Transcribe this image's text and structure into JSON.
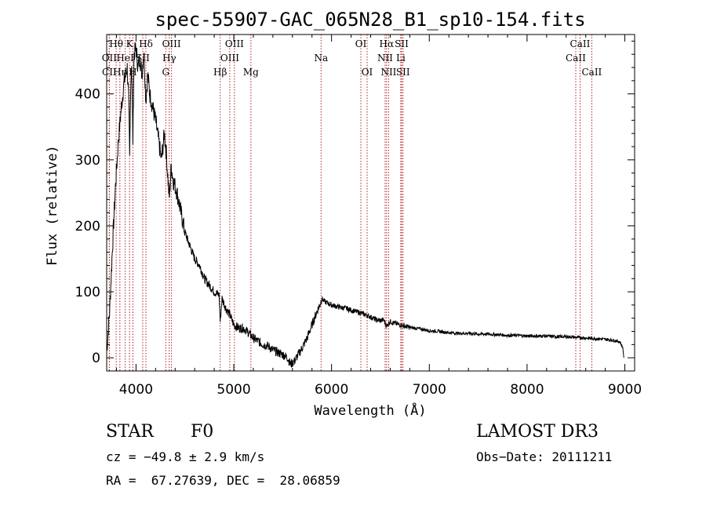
{
  "chart_data": {
    "type": "line",
    "title": "spec-55907-GAC_065N28_B1_sp10-154.fits",
    "xlabel": "Wavelength (Å)",
    "ylabel": "Flux (relative)",
    "xlim": [
      3700,
      9100
    ],
    "ylim": [
      -20,
      490
    ],
    "x_ticks": [
      4000,
      5000,
      6000,
      7000,
      8000,
      9000
    ],
    "y_ticks": [
      0,
      100,
      200,
      300,
      400
    ],
    "series": [
      {
        "name": "flux",
        "x": [
          3700,
          3730,
          3760,
          3790,
          3820,
          3850,
          3880,
          3910,
          3925,
          3935,
          3945,
          3955,
          3968,
          3980,
          4000,
          4020,
          4040,
          4060,
          4080,
          4101,
          4120,
          4140,
          4170,
          4200,
          4230,
          4260,
          4290,
          4310,
          4340,
          4360,
          4380,
          4420,
          4460,
          4500,
          4550,
          4600,
          4650,
          4700,
          4750,
          4800,
          4850,
          4861,
          4880,
          4920,
          4960,
          5000,
          5050,
          5100,
          5150,
          5200,
          5250,
          5300,
          5350,
          5400,
          5450,
          5500,
          5550,
          5580,
          5620,
          5660,
          5700,
          5750,
          5800,
          5850,
          5880,
          5900,
          5930,
          5960,
          6000,
          6050,
          6100,
          6150,
          6200,
          6250,
          6300,
          6350,
          6400,
          6450,
          6500,
          6530,
          6563,
          6600,
          6650,
          6700,
          6750,
          6800,
          6900,
          7000,
          7100,
          7200,
          7300,
          7400,
          7500,
          7600,
          7700,
          7800,
          7900,
          8000,
          8100,
          8200,
          8300,
          8400,
          8500,
          8600,
          8700,
          8800,
          8900,
          8950,
          8980,
          8990
        ],
        "y": [
          10,
          70,
          170,
          260,
          330,
          380,
          420,
          440,
          390,
          300,
          410,
          450,
          330,
          460,
          470,
          440,
          455,
          430,
          465,
          390,
          430,
          400,
          380,
          360,
          330,
          300,
          340,
          310,
          240,
          290,
          270,
          250,
          220,
          190,
          170,
          150,
          140,
          120,
          110,
          100,
          95,
          55,
          90,
          75,
          65,
          50,
          45,
          45,
          38,
          30,
          25,
          20,
          18,
          12,
          8,
          5,
          0,
          -10,
          -5,
          5,
          15,
          30,
          50,
          70,
          80,
          90,
          85,
          83,
          80,
          78,
          76,
          75,
          72,
          70,
          68,
          65,
          62,
          58,
          56,
          58,
          48,
          55,
          52,
          50,
          48,
          46,
          44,
          41,
          40,
          38,
          37,
          37,
          36,
          36,
          35,
          34,
          34,
          33,
          33,
          33,
          32,
          32,
          31,
          30,
          29,
          28,
          26,
          24,
          15,
          0
        ]
      }
    ],
    "spectral_lines": [
      {
        "label": "Hθ",
        "x": 3797,
        "row": 0
      },
      {
        "label": "OII",
        "x": 3727,
        "row": 1
      },
      {
        "label": "CII",
        "x": 3727,
        "row": 2
      },
      {
        "label": "HeI",
        "x": 3889,
        "row": 1
      },
      {
        "label": "Hη",
        "x": 3835,
        "row": 2
      },
      {
        "label": "K",
        "x": 3934,
        "row": 0
      },
      {
        "label": "SII",
        "x": 4069,
        "row": 1
      },
      {
        "label": "H",
        "x": 3968,
        "row": 2
      },
      {
        "label": "Hδ",
        "x": 4101,
        "row": 0
      },
      {
        "label": "OIII",
        "x": 4363,
        "row": 0
      },
      {
        "label": "Hγ",
        "x": 4340,
        "row": 1
      },
      {
        "label": "G",
        "x": 4304,
        "row": 2
      },
      {
        "label": "OIII",
        "x": 5007,
        "row": 0
      },
      {
        "label": "OIII",
        "x": 4959,
        "row": 1
      },
      {
        "label": "Hβ",
        "x": 4861,
        "row": 2
      },
      {
        "label": "Mg",
        "x": 5175,
        "row": 2
      },
      {
        "label": "Na",
        "x": 5893,
        "row": 1
      },
      {
        "label": "OI",
        "x": 6300,
        "row": 0
      },
      {
        "label": "OI",
        "x": 6364,
        "row": 2
      },
      {
        "label": "Hα",
        "x": 6563,
        "row": 0
      },
      {
        "label": "NII",
        "x": 6548,
        "row": 1
      },
      {
        "label": "NII",
        "x": 6584,
        "row": 2
      },
      {
        "label": "SII",
        "x": 6717,
        "row": 0
      },
      {
        "label": "Li",
        "x": 6708,
        "row": 1
      },
      {
        "label": "SII",
        "x": 6731,
        "row": 2
      },
      {
        "label": "CaII",
        "x": 8542,
        "row": 0
      },
      {
        "label": "CaII",
        "x": 8498,
        "row": 1
      },
      {
        "label": "CaII",
        "x": 8662,
        "row": 2
      }
    ],
    "colors": {
      "spectrum": "#000000",
      "line_marker": "#b22222",
      "axes": "#000000"
    }
  },
  "info": {
    "object_class": "STAR",
    "subclass": "F0",
    "survey": "LAMOST DR3",
    "cz": "cz = −49.8 ± 2.9 km/s",
    "obs_date": "Obs−Date: 20111211",
    "coords": "RA =  67.27639, DEC =  28.06859"
  }
}
